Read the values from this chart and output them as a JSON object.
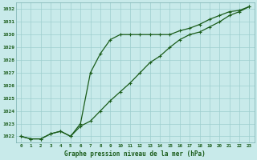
{
  "title": "Graphe pression niveau de la mer (hPa)",
  "bg_color": "#c8eaea",
  "grid_color": "#9ecece",
  "line_color": "#1a5c1a",
  "xlim": [
    -0.5,
    23.5
  ],
  "ylim": [
    1021.5,
    1032.5
  ],
  "yticks": [
    1022,
    1023,
    1024,
    1025,
    1026,
    1027,
    1028,
    1029,
    1030,
    1031,
    1032
  ],
  "xticks": [
    0,
    1,
    2,
    3,
    4,
    5,
    6,
    7,
    8,
    9,
    10,
    11,
    12,
    13,
    14,
    15,
    16,
    17,
    18,
    19,
    20,
    21,
    22,
    23
  ],
  "series1_x": [
    0,
    1,
    2,
    3,
    4,
    5,
    6,
    7,
    8,
    9,
    10,
    11,
    12,
    13,
    14,
    15,
    16,
    17,
    18,
    19,
    20,
    21,
    22,
    23
  ],
  "series1_y": [
    1022.0,
    1021.8,
    1021.8,
    1022.2,
    1022.4,
    1022.0,
    1023.0,
    1027.0,
    1028.5,
    1029.6,
    1030.0,
    1030.0,
    1030.0,
    1030.0,
    1030.0,
    1030.0,
    1030.3,
    1030.5,
    1030.8,
    1031.2,
    1031.5,
    1031.8,
    1031.9,
    1032.2
  ],
  "series2_x": [
    0,
    1,
    2,
    3,
    4,
    5,
    6,
    7,
    8,
    9,
    10,
    11,
    12,
    13,
    14,
    15,
    16,
    17,
    18,
    19,
    20,
    21,
    22,
    23
  ],
  "series2_y": [
    1022.0,
    1021.8,
    1021.8,
    1022.2,
    1022.4,
    1022.0,
    1022.8,
    1023.2,
    1024.0,
    1024.8,
    1025.5,
    1026.2,
    1027.0,
    1027.8,
    1028.3,
    1029.0,
    1029.6,
    1030.0,
    1030.2,
    1030.6,
    1031.0,
    1031.5,
    1031.8,
    1032.2
  ]
}
